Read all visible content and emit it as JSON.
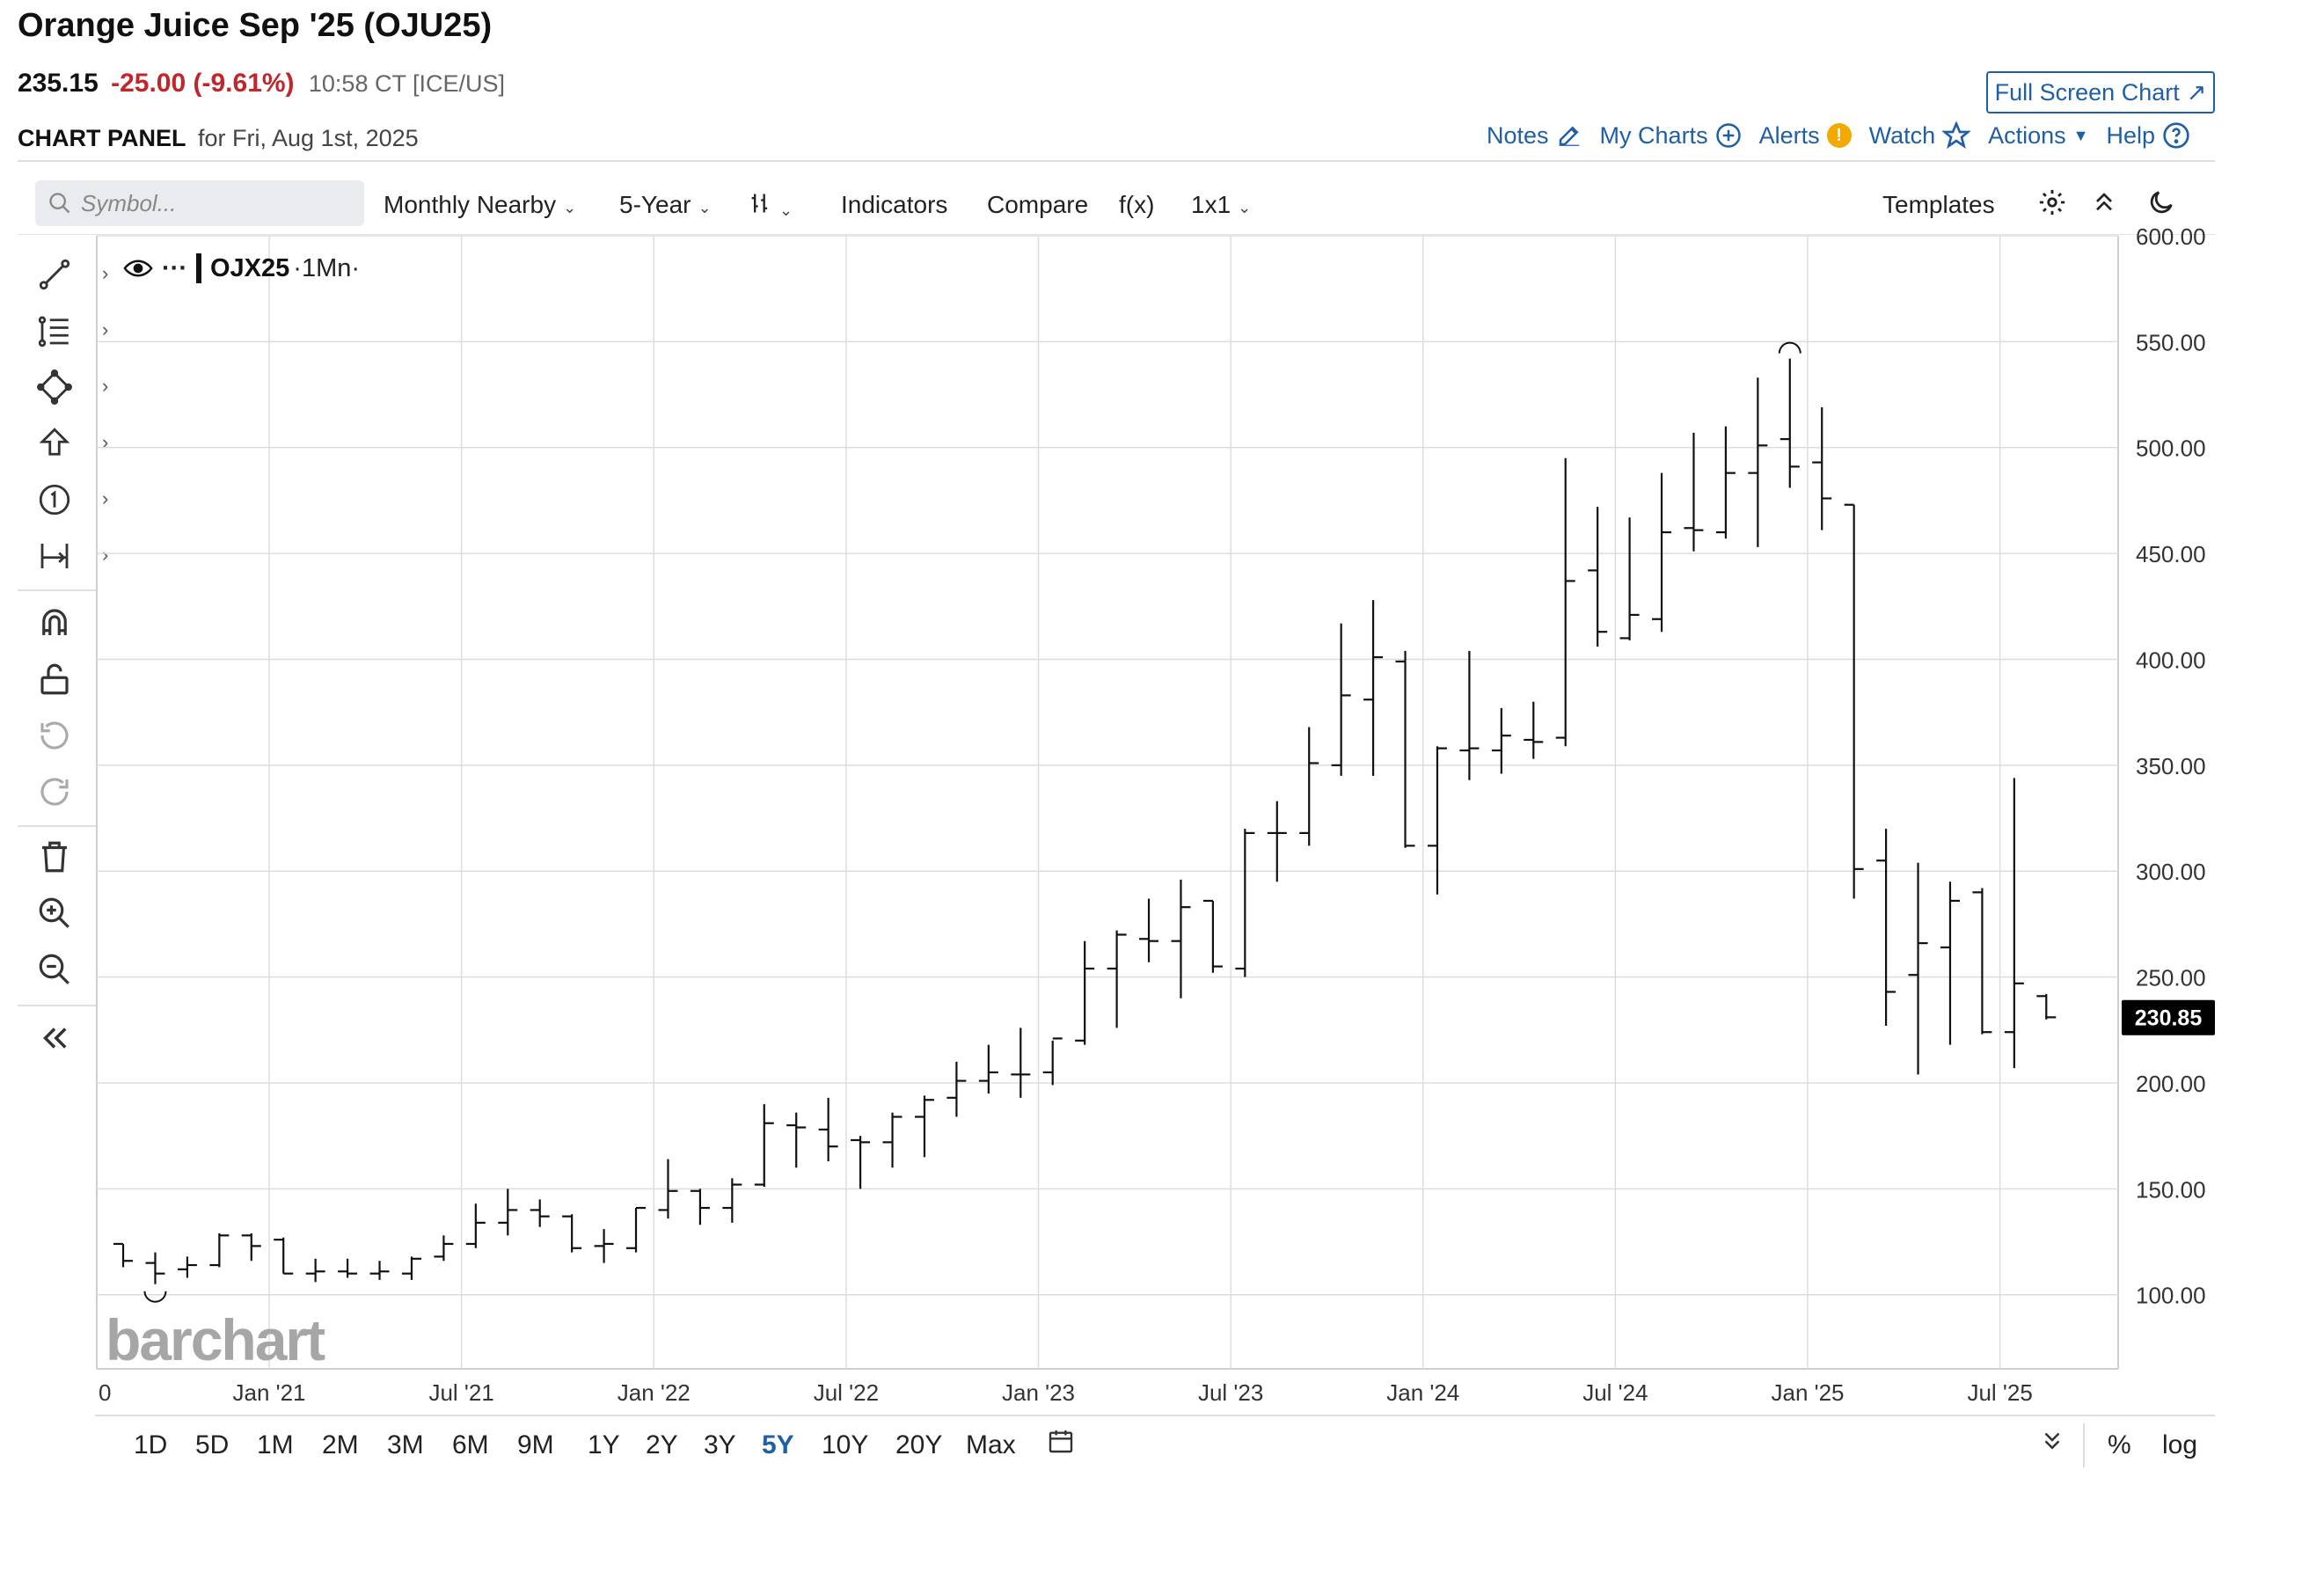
{
  "header": {
    "title": "Orange Juice Sep '25 (OJU25)",
    "last": "235.15",
    "change": "-25.00 (-9.61%)",
    "time": "10:58 CT [ICE/US]",
    "fullscreen_label": "Full Screen Chart",
    "panel_label": "CHART PANEL",
    "panel_date": "for Fri, Aug 1st, 2025"
  },
  "top_actions": {
    "notes": "Notes",
    "my_charts": "My Charts",
    "alerts": "Alerts",
    "alerts_badge": "!",
    "watch": "Watch",
    "actions": "Actions",
    "help": "Help"
  },
  "toolbar": {
    "symbol_placeholder": "Symbol...",
    "period": "Monthly Nearby",
    "range": "5-Year",
    "indicators": "Indicators",
    "compare": "Compare",
    "fx": "f(x)",
    "layout": "1x1",
    "templates": "Templates"
  },
  "legend": {
    "symbol": "OJX25",
    "interval": "·1Mn·",
    "more": "···"
  },
  "price_tag": "230.85",
  "watermark": "barchart",
  "bottom_ranges": [
    "1D",
    "5D",
    "1M",
    "2M",
    "3M",
    "6M",
    "9M",
    "1Y",
    "2Y",
    "3Y",
    "5Y",
    "10Y",
    "20Y",
    "Max"
  ],
  "bottom_active": "5Y",
  "bottom_right": {
    "percent": "%",
    "log": "log"
  },
  "colors": {
    "link": "#1f5fa6",
    "down": "#c0272d",
    "bar": "#111111",
    "grid": "#dddddd"
  },
  "chart_data": {
    "type": "ohlc",
    "period": "monthly",
    "ylim": [
      65,
      600
    ],
    "y_ticks": [
      "600.00",
      "550.00",
      "500.00",
      "450.00",
      "400.00",
      "350.00",
      "300.00",
      "250.00",
      "200.00",
      "150.00",
      "100.00"
    ],
    "x_tick_labels": [
      "0",
      "Jan '21",
      "Jul '21",
      "Jan '22",
      "Jul '22",
      "Jan '23",
      "Jul '23",
      "Jan '24",
      "Jul '24",
      "Jan '25",
      "Jul '25"
    ],
    "grid": true,
    "high_marker": {
      "date": "2024-12",
      "value": 542
    },
    "low_marker": {
      "date": "2020-09",
      "value": 105
    },
    "bars": [
      {
        "date": "2020-08",
        "open": 124,
        "high": 124,
        "low": 113,
        "close": 116
      },
      {
        "date": "2020-09",
        "open": 115,
        "high": 120,
        "low": 105,
        "close": 110
      },
      {
        "date": "2020-10",
        "open": 112,
        "high": 118,
        "low": 108,
        "close": 114
      },
      {
        "date": "2020-11",
        "open": 114,
        "high": 129,
        "low": 113,
        "close": 128
      },
      {
        "date": "2020-12",
        "open": 128,
        "high": 129,
        "low": 116,
        "close": 123
      },
      {
        "date": "2021-01",
        "open": 126,
        "high": 127,
        "low": 110,
        "close": 110
      },
      {
        "date": "2021-02",
        "open": 110,
        "high": 117,
        "low": 106,
        "close": 111
      },
      {
        "date": "2021-03",
        "open": 111,
        "high": 117,
        "low": 108,
        "close": 110
      },
      {
        "date": "2021-04",
        "open": 110,
        "high": 116,
        "low": 107,
        "close": 111
      },
      {
        "date": "2021-05",
        "open": 110,
        "high": 118,
        "low": 107,
        "close": 117
      },
      {
        "date": "2021-06",
        "open": 118,
        "high": 128,
        "low": 116,
        "close": 124
      },
      {
        "date": "2021-07",
        "open": 124,
        "high": 143,
        "low": 122,
        "close": 134
      },
      {
        "date": "2021-08",
        "open": 134,
        "high": 150,
        "low": 128,
        "close": 140
      },
      {
        "date": "2021-09",
        "open": 140,
        "high": 145,
        "low": 132,
        "close": 137
      },
      {
        "date": "2021-10",
        "open": 137,
        "high": 138,
        "low": 120,
        "close": 122
      },
      {
        "date": "2021-11",
        "open": 123,
        "high": 131,
        "low": 115,
        "close": 124
      },
      {
        "date": "2021-12",
        "open": 122,
        "high": 141,
        "low": 120,
        "close": 141
      },
      {
        "date": "2022-01",
        "open": 140,
        "high": 164,
        "low": 136,
        "close": 149
      },
      {
        "date": "2022-02",
        "open": 149,
        "high": 150,
        "low": 133,
        "close": 141
      },
      {
        "date": "2022-03",
        "open": 141,
        "high": 155,
        "low": 134,
        "close": 152
      },
      {
        "date": "2022-04",
        "open": 152,
        "high": 190,
        "low": 151,
        "close": 181
      },
      {
        "date": "2022-05",
        "open": 180,
        "high": 186,
        "low": 160,
        "close": 179
      },
      {
        "date": "2022-06",
        "open": 178,
        "high": 193,
        "low": 163,
        "close": 170
      },
      {
        "date": "2022-07",
        "open": 173,
        "high": 175,
        "low": 150,
        "close": 172
      },
      {
        "date": "2022-08",
        "open": 172,
        "high": 186,
        "low": 160,
        "close": 184
      },
      {
        "date": "2022-09",
        "open": 184,
        "high": 194,
        "low": 165,
        "close": 192
      },
      {
        "date": "2022-10",
        "open": 193,
        "high": 210,
        "low": 184,
        "close": 201
      },
      {
        "date": "2022-11",
        "open": 201,
        "high": 218,
        "low": 195,
        "close": 205
      },
      {
        "date": "2022-12",
        "open": 204,
        "high": 226,
        "low": 193,
        "close": 204
      },
      {
        "date": "2023-01",
        "open": 205,
        "high": 220,
        "low": 199,
        "close": 221
      },
      {
        "date": "2023-02",
        "open": 220,
        "high": 267,
        "low": 218,
        "close": 254
      },
      {
        "date": "2023-03",
        "open": 254,
        "high": 272,
        "low": 226,
        "close": 270
      },
      {
        "date": "2023-04",
        "open": 268,
        "high": 287,
        "low": 257,
        "close": 267
      },
      {
        "date": "2023-05",
        "open": 267,
        "high": 296,
        "low": 240,
        "close": 283
      },
      {
        "date": "2023-06",
        "open": 286,
        "high": 286,
        "low": 252,
        "close": 255
      },
      {
        "date": "2023-07",
        "open": 254,
        "high": 320,
        "low": 250,
        "close": 318
      },
      {
        "date": "2023-08",
        "open": 318,
        "high": 333,
        "low": 295,
        "close": 318
      },
      {
        "date": "2023-09",
        "open": 318,
        "high": 368,
        "low": 312,
        "close": 351
      },
      {
        "date": "2023-10",
        "open": 350,
        "high": 417,
        "low": 345,
        "close": 383
      },
      {
        "date": "2023-11",
        "open": 381,
        "high": 428,
        "low": 345,
        "close": 401
      },
      {
        "date": "2023-12",
        "open": 399,
        "high": 404,
        "low": 311,
        "close": 312
      },
      {
        "date": "2024-01",
        "open": 312,
        "high": 359,
        "low": 289,
        "close": 358
      },
      {
        "date": "2024-02",
        "open": 357,
        "high": 404,
        "low": 343,
        "close": 358
      },
      {
        "date": "2024-03",
        "open": 357,
        "high": 377,
        "low": 346,
        "close": 364
      },
      {
        "date": "2024-04",
        "open": 362,
        "high": 380,
        "low": 353,
        "close": 361
      },
      {
        "date": "2024-05",
        "open": 363,
        "high": 495,
        "low": 359,
        "close": 437
      },
      {
        "date": "2024-06",
        "open": 442,
        "high": 472,
        "low": 406,
        "close": 413
      },
      {
        "date": "2024-07",
        "open": 410,
        "high": 467,
        "low": 409,
        "close": 421
      },
      {
        "date": "2024-08",
        "open": 419,
        "high": 488,
        "low": 413,
        "close": 460
      },
      {
        "date": "2024-09",
        "open": 462,
        "high": 507,
        "low": 451,
        "close": 461
      },
      {
        "date": "2024-10",
        "open": 460,
        "high": 510,
        "low": 457,
        "close": 488
      },
      {
        "date": "2024-11",
        "open": 488,
        "high": 533,
        "low": 453,
        "close": 501
      },
      {
        "date": "2024-12",
        "open": 504,
        "high": 542,
        "low": 481,
        "close": 491
      },
      {
        "date": "2025-01",
        "open": 493,
        "high": 519,
        "low": 461,
        "close": 476
      },
      {
        "date": "2025-02",
        "open": 473,
        "high": 473,
        "low": 287,
        "close": 301
      },
      {
        "date": "2025-03",
        "open": 305,
        "high": 320,
        "low": 227,
        "close": 243
      },
      {
        "date": "2025-04",
        "open": 251,
        "high": 304,
        "low": 204,
        "close": 266
      },
      {
        "date": "2025-05",
        "open": 264,
        "high": 295,
        "low": 218,
        "close": 286
      },
      {
        "date": "2025-06",
        "open": 290,
        "high": 292,
        "low": 223,
        "close": 224
      },
      {
        "date": "2025-07",
        "open": 224,
        "high": 344,
        "low": 207,
        "close": 247
      },
      {
        "date": "2025-08",
        "open": 241,
        "high": 242,
        "low": 230,
        "close": 231
      }
    ]
  }
}
